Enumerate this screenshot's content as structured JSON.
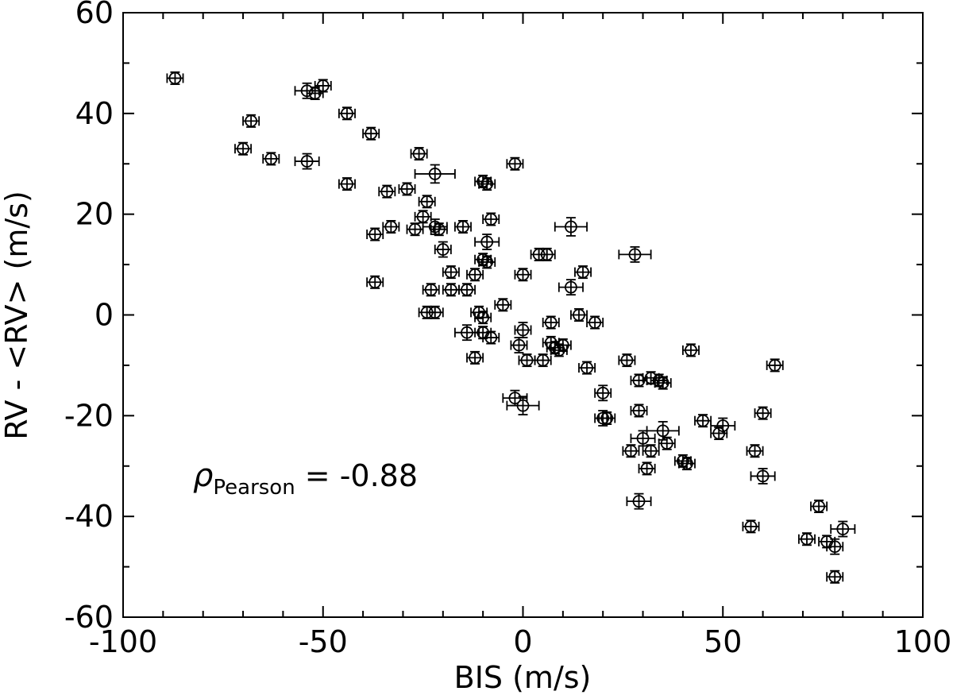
{
  "chart_data": {
    "type": "scatter",
    "title": "",
    "xlabel": "BIS (m/s)",
    "ylabel": "RV - <RV> (m/s)",
    "xlim": [
      -100,
      100
    ],
    "ylim": [
      -60,
      60
    ],
    "x_ticks": [
      -100,
      -50,
      0,
      50,
      100
    ],
    "y_ticks": [
      -60,
      -40,
      -20,
      0,
      20,
      40,
      60
    ],
    "x_tick_labels": [
      "-100",
      "-50",
      "0",
      "50",
      "100"
    ],
    "y_tick_labels": [
      "-60",
      "-40",
      "-20",
      "0",
      "20",
      "40",
      "60"
    ],
    "grid": false,
    "marker": "open-circle-with-errorbars",
    "annotation": {
      "symbol": "ρ",
      "subscript": "Pearson",
      "text": " = -0.88"
    },
    "points": [
      {
        "x": -87,
        "y": 47,
        "xerr": 2,
        "yerr": 1.2
      },
      {
        "x": -54,
        "y": 44.5,
        "xerr": 3,
        "yerr": 1.5
      },
      {
        "x": -52,
        "y": 44,
        "xerr": 2,
        "yerr": 1.2
      },
      {
        "x": -50,
        "y": 45.5,
        "xerr": 2,
        "yerr": 1.2
      },
      {
        "x": -44,
        "y": 40,
        "xerr": 2,
        "yerr": 1.2
      },
      {
        "x": -68,
        "y": 38.5,
        "xerr": 2,
        "yerr": 1.2
      },
      {
        "x": -38,
        "y": 36,
        "xerr": 2,
        "yerr": 1.2
      },
      {
        "x": -70,
        "y": 33,
        "xerr": 2,
        "yerr": 1.2
      },
      {
        "x": -63,
        "y": 31,
        "xerr": 2,
        "yerr": 1.2
      },
      {
        "x": -54,
        "y": 30.5,
        "xerr": 3,
        "yerr": 1.5
      },
      {
        "x": -26,
        "y": 32,
        "xerr": 2,
        "yerr": 1.2
      },
      {
        "x": -2,
        "y": 30,
        "xerr": 2,
        "yerr": 1.2
      },
      {
        "x": -22,
        "y": 28,
        "xerr": 5,
        "yerr": 1.8
      },
      {
        "x": -44,
        "y": 26,
        "xerr": 2,
        "yerr": 1.2
      },
      {
        "x": -10,
        "y": 26.5,
        "xerr": 2,
        "yerr": 1.2
      },
      {
        "x": -9,
        "y": 26,
        "xerr": 2,
        "yerr": 1.2
      },
      {
        "x": -34,
        "y": 24.5,
        "xerr": 2,
        "yerr": 1.2
      },
      {
        "x": -29,
        "y": 25,
        "xerr": 2,
        "yerr": 1.2
      },
      {
        "x": -24,
        "y": 22.5,
        "xerr": 2,
        "yerr": 1.2
      },
      {
        "x": -25,
        "y": 19.5,
        "xerr": 2,
        "yerr": 1.2
      },
      {
        "x": -8,
        "y": 19,
        "xerr": 2,
        "yerr": 1.2
      },
      {
        "x": -33,
        "y": 17.5,
        "xerr": 2,
        "yerr": 1.2
      },
      {
        "x": -27,
        "y": 17,
        "xerr": 2,
        "yerr": 1.2
      },
      {
        "x": -22,
        "y": 17.5,
        "xerr": 3,
        "yerr": 1.5
      },
      {
        "x": -21,
        "y": 17,
        "xerr": 2,
        "yerr": 1.2
      },
      {
        "x": -15,
        "y": 17.5,
        "xerr": 2,
        "yerr": 1.2
      },
      {
        "x": 12,
        "y": 17.5,
        "xerr": 4,
        "yerr": 1.8
      },
      {
        "x": -37,
        "y": 16,
        "xerr": 2,
        "yerr": 1.2
      },
      {
        "x": -9,
        "y": 14.5,
        "xerr": 3,
        "yerr": 1.5
      },
      {
        "x": -20,
        "y": 13,
        "xerr": 2,
        "yerr": 1.5
      },
      {
        "x": 4,
        "y": 12,
        "xerr": 2,
        "yerr": 1.2
      },
      {
        "x": 6,
        "y": 12,
        "xerr": 2,
        "yerr": 1.2
      },
      {
        "x": 28,
        "y": 12,
        "xerr": 4,
        "yerr": 1.5
      },
      {
        "x": -10,
        "y": 11,
        "xerr": 2,
        "yerr": 1.2
      },
      {
        "x": -9,
        "y": 10.5,
        "xerr": 2,
        "yerr": 1.2
      },
      {
        "x": -18,
        "y": 8.5,
        "xerr": 2,
        "yerr": 1.2
      },
      {
        "x": -12,
        "y": 8,
        "xerr": 2,
        "yerr": 1.2
      },
      {
        "x": 0,
        "y": 8,
        "xerr": 2,
        "yerr": 1.2
      },
      {
        "x": 15,
        "y": 8.5,
        "xerr": 2,
        "yerr": 1.2
      },
      {
        "x": -37,
        "y": 6.5,
        "xerr": 2,
        "yerr": 1.2
      },
      {
        "x": -23,
        "y": 5,
        "xerr": 2,
        "yerr": 1.2
      },
      {
        "x": -18,
        "y": 5,
        "xerr": 2,
        "yerr": 1.2
      },
      {
        "x": -14,
        "y": 5,
        "xerr": 2,
        "yerr": 1.2
      },
      {
        "x": 12,
        "y": 5.5,
        "xerr": 3,
        "yerr": 1.5
      },
      {
        "x": -5,
        "y": 2,
        "xerr": 2,
        "yerr": 1.2
      },
      {
        "x": -24,
        "y": 0.5,
        "xerr": 2,
        "yerr": 1.2
      },
      {
        "x": -22,
        "y": 0.5,
        "xerr": 2,
        "yerr": 1.2
      },
      {
        "x": -11,
        "y": 0.5,
        "xerr": 2,
        "yerr": 1.2
      },
      {
        "x": -10,
        "y": -0.5,
        "xerr": 2,
        "yerr": 1.2
      },
      {
        "x": 14,
        "y": 0,
        "xerr": 2,
        "yerr": 1.2
      },
      {
        "x": 18,
        "y": -1.5,
        "xerr": 2,
        "yerr": 1.2
      },
      {
        "x": 7,
        "y": -1.5,
        "xerr": 2,
        "yerr": 1.2
      },
      {
        "x": -14,
        "y": -3.5,
        "xerr": 3,
        "yerr": 1.5
      },
      {
        "x": -10,
        "y": -3.5,
        "xerr": 2,
        "yerr": 1.2
      },
      {
        "x": -8,
        "y": -4.5,
        "xerr": 2,
        "yerr": 1.2
      },
      {
        "x": 0,
        "y": -3,
        "xerr": 2,
        "yerr": 1.5
      },
      {
        "x": -1,
        "y": -6,
        "xerr": 2,
        "yerr": 1.5
      },
      {
        "x": 7,
        "y": -5.5,
        "xerr": 2,
        "yerr": 1.2
      },
      {
        "x": 8,
        "y": -6.5,
        "xerr": 2,
        "yerr": 1.2
      },
      {
        "x": 10,
        "y": -6,
        "xerr": 2,
        "yerr": 1.2
      },
      {
        "x": 9,
        "y": -7,
        "xerr": 2,
        "yerr": 1.2
      },
      {
        "x": -12,
        "y": -8.5,
        "xerr": 2,
        "yerr": 1.2
      },
      {
        "x": 1,
        "y": -9,
        "xerr": 2,
        "yerr": 1.2
      },
      {
        "x": 5,
        "y": -9,
        "xerr": 2,
        "yerr": 1.2
      },
      {
        "x": 26,
        "y": -9,
        "xerr": 2,
        "yerr": 1.2
      },
      {
        "x": 42,
        "y": -7,
        "xerr": 2,
        "yerr": 1.2
      },
      {
        "x": 63,
        "y": -10,
        "xerr": 2,
        "yerr": 1.2
      },
      {
        "x": 16,
        "y": -10.5,
        "xerr": 2,
        "yerr": 1.2
      },
      {
        "x": 29,
        "y": -13,
        "xerr": 2,
        "yerr": 1.2
      },
      {
        "x": 32,
        "y": -12.5,
        "xerr": 2,
        "yerr": 1.2
      },
      {
        "x": 34,
        "y": -13,
        "xerr": 2,
        "yerr": 1.2
      },
      {
        "x": 35,
        "y": -13.5,
        "xerr": 2,
        "yerr": 1.2
      },
      {
        "x": -2,
        "y": -16.5,
        "xerr": 3,
        "yerr": 1.5
      },
      {
        "x": 0,
        "y": -18,
        "xerr": 4,
        "yerr": 1.8
      },
      {
        "x": 20,
        "y": -15.5,
        "xerr": 2,
        "yerr": 1.5
      },
      {
        "x": 29,
        "y": -19,
        "xerr": 2,
        "yerr": 1.2
      },
      {
        "x": 60,
        "y": -19.5,
        "xerr": 2,
        "yerr": 1.2
      },
      {
        "x": 20,
        "y": -20.5,
        "xerr": 2,
        "yerr": 1.5
      },
      {
        "x": 21,
        "y": -20.5,
        "xerr": 2,
        "yerr": 1.2
      },
      {
        "x": 45,
        "y": -21,
        "xerr": 2,
        "yerr": 1.2
      },
      {
        "x": 50,
        "y": -22,
        "xerr": 3,
        "yerr": 1.5
      },
      {
        "x": 49,
        "y": -23.5,
        "xerr": 2,
        "yerr": 1.2
      },
      {
        "x": 35,
        "y": -23,
        "xerr": 4,
        "yerr": 1.8
      },
      {
        "x": 30,
        "y": -24.5,
        "xerr": 3,
        "yerr": 1.5
      },
      {
        "x": 36,
        "y": -25.5,
        "xerr": 2,
        "yerr": 1.2
      },
      {
        "x": 27,
        "y": -27,
        "xerr": 2,
        "yerr": 1.2
      },
      {
        "x": 32,
        "y": -27,
        "xerr": 2,
        "yerr": 1.2
      },
      {
        "x": 58,
        "y": -27,
        "xerr": 2,
        "yerr": 1.2
      },
      {
        "x": 40,
        "y": -29,
        "xerr": 2,
        "yerr": 1.2
      },
      {
        "x": 41,
        "y": -29.5,
        "xerr": 2,
        "yerr": 1.2
      },
      {
        "x": 31,
        "y": -30.5,
        "xerr": 2,
        "yerr": 1.2
      },
      {
        "x": 60,
        "y": -32,
        "xerr": 3,
        "yerr": 1.5
      },
      {
        "x": 29,
        "y": -37,
        "xerr": 3,
        "yerr": 1.5
      },
      {
        "x": 74,
        "y": -38,
        "xerr": 2,
        "yerr": 1.2
      },
      {
        "x": 57,
        "y": -42,
        "xerr": 2,
        "yerr": 1.2
      },
      {
        "x": 80,
        "y": -42.5,
        "xerr": 3,
        "yerr": 1.5
      },
      {
        "x": 71,
        "y": -44.5,
        "xerr": 2,
        "yerr": 1.2
      },
      {
        "x": 76,
        "y": -45,
        "xerr": 2,
        "yerr": 1.2
      },
      {
        "x": 78,
        "y": -46,
        "xerr": 2,
        "yerr": 1.5
      },
      {
        "x": 78,
        "y": -52,
        "xerr": 2,
        "yerr": 1.2
      }
    ]
  }
}
